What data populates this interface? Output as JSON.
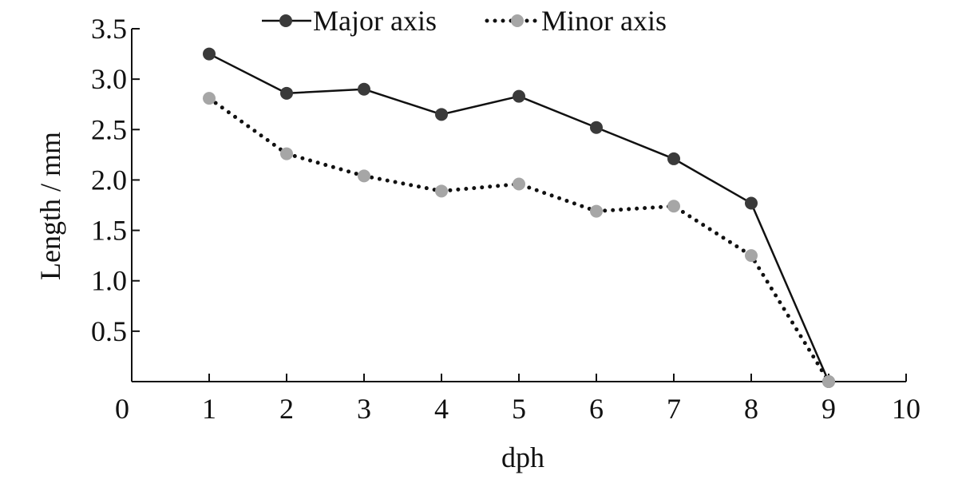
{
  "chart_data": {
    "type": "line",
    "xlabel": "dph",
    "ylabel": "Length / mm",
    "xlim": [
      0,
      10
    ],
    "ylim": [
      0,
      3.5
    ],
    "x_ticks": [
      "0",
      "1",
      "2",
      "3",
      "4",
      "5",
      "6",
      "7",
      "8",
      "9",
      "10"
    ],
    "y_ticks": [
      "0.5",
      "1.0",
      "1.5",
      "2.0",
      "2.5",
      "3.0",
      "3.5"
    ],
    "grid": false,
    "legend_position": "top-center",
    "x": [
      1,
      2,
      3,
      4,
      5,
      6,
      7,
      8,
      9
    ],
    "series": [
      {
        "name": "Major axis",
        "values": [
          3.25,
          2.86,
          2.9,
          2.65,
          2.83,
          2.52,
          2.21,
          1.77,
          0.0
        ],
        "color": "#3a3a3a",
        "line_style": "solid"
      },
      {
        "name": "Minor axis",
        "values": [
          2.81,
          2.26,
          2.04,
          1.89,
          1.96,
          1.69,
          1.74,
          1.25,
          0.0
        ],
        "color": "#a6a6a6",
        "line_style": "dotted"
      }
    ]
  }
}
